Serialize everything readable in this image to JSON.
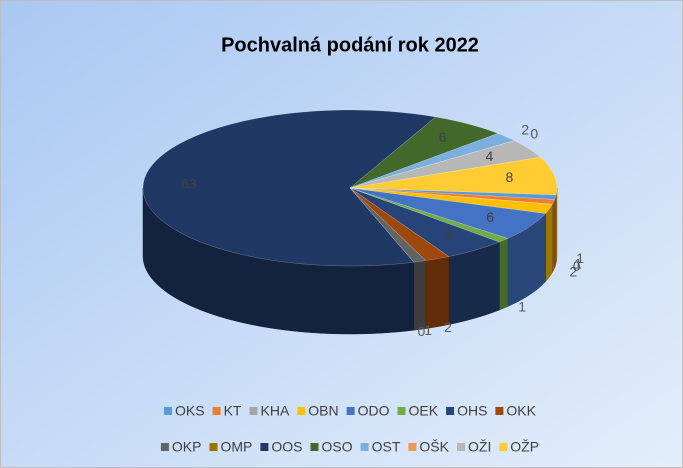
{
  "chart_data": {
    "type": "pie3d",
    "title": "Pochvalná podání rok 2022",
    "categories": [
      "OKS",
      "KT",
      "KHA",
      "OBN",
      "ODO",
      "OEK",
      "OHS",
      "OKK",
      "OKP",
      "OMP",
      "OOS",
      "OSO",
      "OST",
      "OŠK",
      "OŽI",
      "OŽP"
    ],
    "values": [
      1,
      1,
      0,
      2,
      6,
      1,
      5,
      2,
      1,
      0,
      63,
      6,
      2,
      0,
      4,
      8
    ],
    "colors": [
      "#5b9bd5",
      "#ed7d31",
      "#a5a5a5",
      "#ffc000",
      "#4472c4",
      "#70ad47",
      "#264478",
      "#9e480e",
      "#636363",
      "#997300",
      "#1f3864",
      "#43682b",
      "#7cafdd",
      "#f1975a",
      "#b7b7b7",
      "#ffcd33"
    ],
    "legend": "bottom"
  }
}
